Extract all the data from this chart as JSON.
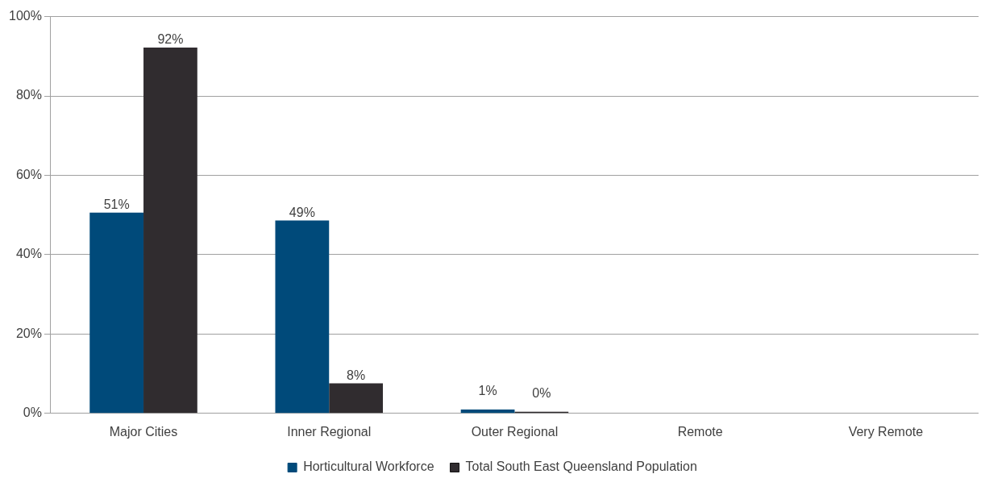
{
  "chart_data": {
    "type": "bar",
    "categories": [
      "Major Cities",
      "Inner Regional",
      "Outer Regional",
      "Remote",
      "Very Remote"
    ],
    "series": [
      {
        "name": "Horticultural Workforce",
        "color": "#004a7a",
        "values": [
          50.6,
          48.6,
          1,
          0,
          0
        ],
        "value_labels": [
          "51%",
          "49%",
          "1%",
          null,
          null
        ]
      },
      {
        "name": "Total South East Queensland Population",
        "color": "#302c2f",
        "values": [
          92.2,
          7.6,
          0.4,
          null,
          0
        ],
        "value_labels": [
          "92%",
          "8%",
          "0%",
          null,
          null
        ]
      }
    ],
    "ylim": [
      0,
      100
    ],
    "yticks": [
      {
        "value": 0,
        "label": "0%"
      },
      {
        "value": 20,
        "label": "20%"
      },
      {
        "value": 40,
        "label": "40%"
      },
      {
        "value": 60,
        "label": "60%"
      },
      {
        "value": 80,
        "label": "80%"
      },
      {
        "value": 100,
        "label": "100%"
      }
    ],
    "grid": "y",
    "legend": "bottom"
  }
}
